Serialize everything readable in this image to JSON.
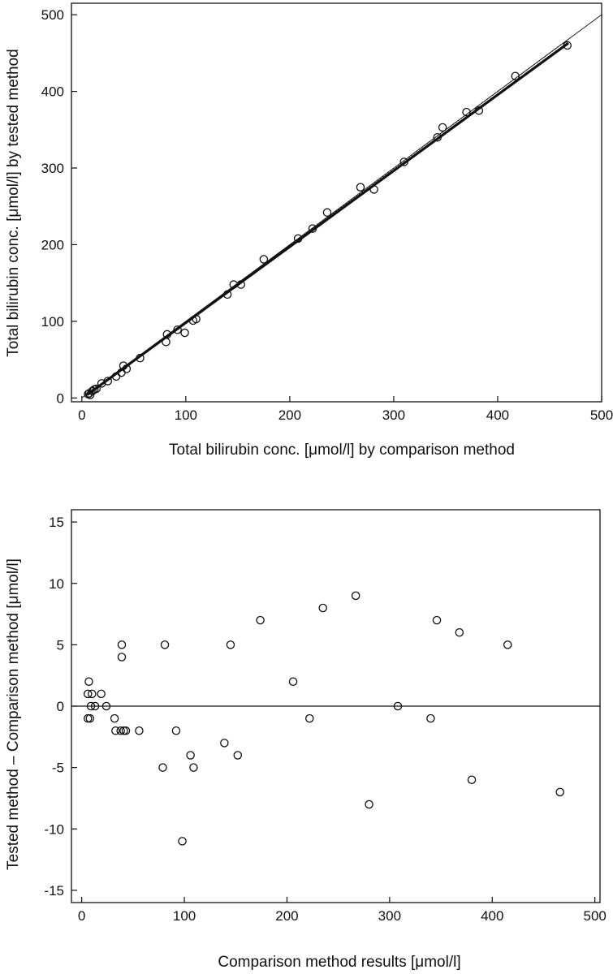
{
  "chart_data": [
    {
      "type": "scatter",
      "title": "",
      "xlabel": "Total bilirubin conc. [μmol/l] by comparison method",
      "ylabel": "Total bilirubin conc. [μmol/l] by tested method",
      "xlim": [
        -10,
        500
      ],
      "ylim": [
        -5,
        515
      ],
      "xticks": [
        0,
        100,
        200,
        300,
        400,
        500
      ],
      "yticks": [
        0,
        100,
        200,
        300,
        400,
        500
      ],
      "grid": false,
      "lines": [
        {
          "kind": "identity",
          "style": "thin",
          "x": [
            0,
            500
          ],
          "y": [
            0,
            500
          ]
        },
        {
          "kind": "regression",
          "style": "thick",
          "x": [
            5,
            468
          ],
          "y": [
            4,
            463
          ]
        },
        {
          "kind": "confidence",
          "style": "dotted",
          "x": [
            5,
            468
          ],
          "y": [
            4,
            468
          ]
        }
      ],
      "series": [
        {
          "points": [
            [
              6,
              5
            ],
            [
              7,
              6
            ],
            [
              8,
              4
            ],
            [
              10,
              9
            ],
            [
              12,
              11
            ],
            [
              14,
              12
            ],
            [
              19,
              19
            ],
            [
              25,
              22
            ],
            [
              33,
              28
            ],
            [
              38,
              33
            ],
            [
              40,
              42
            ],
            [
              43,
              38
            ],
            [
              56,
              52
            ],
            [
              81,
              73
            ],
            [
              82,
              83
            ],
            [
              92,
              89
            ],
            [
              99,
              85
            ],
            [
              107,
              101
            ],
            [
              110,
              103
            ],
            [
              140,
              135
            ],
            [
              146,
              148
            ],
            [
              153,
              148
            ],
            [
              175,
              181
            ],
            [
              208,
              208
            ],
            [
              222,
              221
            ],
            [
              236,
              242
            ],
            [
              268,
              275
            ],
            [
              281,
              272
            ],
            [
              310,
              308
            ],
            [
              342,
              340
            ],
            [
              347,
              353
            ],
            [
              370,
              373
            ],
            [
              382,
              375
            ],
            [
              417,
              420
            ],
            [
              467,
              460
            ]
          ]
        }
      ]
    },
    {
      "type": "scatter",
      "title": "",
      "xlabel": "Comparison method results [μmol/l]",
      "ylabel": "Tested method – Comparison method [μmol/l]",
      "xlim": [
        -10,
        505
      ],
      "ylim": [
        -16,
        16
      ],
      "xticks": [
        0,
        100,
        200,
        300,
        400,
        500
      ],
      "yticks": [
        -15,
        -10,
        -5,
        0,
        5,
        10,
        15
      ],
      "grid": false,
      "reference_line_y": 0,
      "series": [
        {
          "points": [
            [
              6,
              -1
            ],
            [
              6,
              1
            ],
            [
              7,
              2
            ],
            [
              8,
              -1
            ],
            [
              9,
              0
            ],
            [
              10,
              1
            ],
            [
              13,
              0
            ],
            [
              19,
              1
            ],
            [
              24,
              0
            ],
            [
              32,
              -1
            ],
            [
              33,
              -2
            ],
            [
              38,
              -2
            ],
            [
              39,
              5
            ],
            [
              39,
              4
            ],
            [
              41,
              -2
            ],
            [
              43,
              -2
            ],
            [
              56,
              -2
            ],
            [
              79,
              -5
            ],
            [
              81,
              5
            ],
            [
              92,
              -2
            ],
            [
              98,
              -11
            ],
            [
              106,
              -4
            ],
            [
              109,
              -5
            ],
            [
              139,
              -3
            ],
            [
              145,
              5
            ],
            [
              152,
              -4
            ],
            [
              174,
              7
            ],
            [
              206,
              2
            ],
            [
              222,
              -1
            ],
            [
              235,
              8
            ],
            [
              267,
              9
            ],
            [
              280,
              -8
            ],
            [
              308,
              0
            ],
            [
              340,
              -1
            ],
            [
              346,
              7
            ],
            [
              368,
              6
            ],
            [
              380,
              -6
            ],
            [
              415,
              5
            ],
            [
              466,
              -7
            ]
          ]
        }
      ]
    }
  ]
}
